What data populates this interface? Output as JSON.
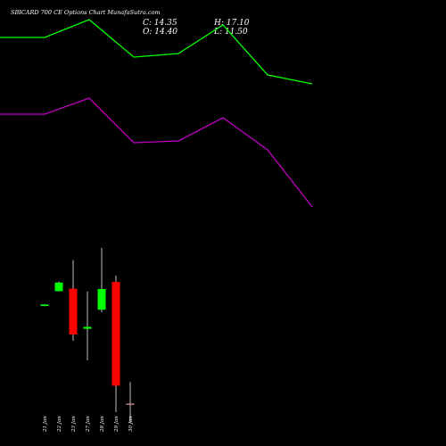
{
  "chart_data": {
    "type": "candlestick",
    "title": "SBICARD 700 CE Options Chart MunafaSutra.com",
    "ohlc_readout": {
      "close": "C: 14.35",
      "high": "H: 17.10",
      "open": "O: 14.40",
      "low": "L: 11.50"
    },
    "categories": [
      "21 Jan",
      "22 Jan",
      "23 Jan",
      "27 Jan",
      "28 Jan",
      "29 Jan",
      "30 Jan"
    ],
    "candles": [
      {
        "open": 6.5,
        "close": 7.3,
        "high": 7.6,
        "low": 6.3
      },
      {
        "open": 14.8,
        "close": 19.6,
        "high": 20.1,
        "low": 14.6
      },
      {
        "open": 16.2,
        "close": -9.5,
        "high": 32.2,
        "low": -13.0
      },
      {
        "open": -6.3,
        "close": -5.2,
        "high": 14.6,
        "low": -24.0
      },
      {
        "open": 4.4,
        "close": 16.0,
        "high": 39.0,
        "low": 3.0
      },
      {
        "open": 19.9,
        "close": -38.2,
        "high": 23.5,
        "low": -53.0
      },
      {
        "open": -48.2,
        "close": -48.2,
        "high": -36.2,
        "low": -59.0
      }
    ],
    "indicators": [
      {
        "color": "#00ff00",
        "values": [
          157,
          157,
          167,
          146,
          148,
          164,
          136,
          131
        ]
      },
      {
        "color": "#c000c0",
        "values": [
          114,
          114,
          123,
          98,
          99,
          112,
          94,
          62
        ]
      }
    ],
    "colors": {
      "up": "#00ff00",
      "down": "#ff0000",
      "doji": "#c08080",
      "wick": "#c0c0c0",
      "background": "#000000"
    }
  }
}
